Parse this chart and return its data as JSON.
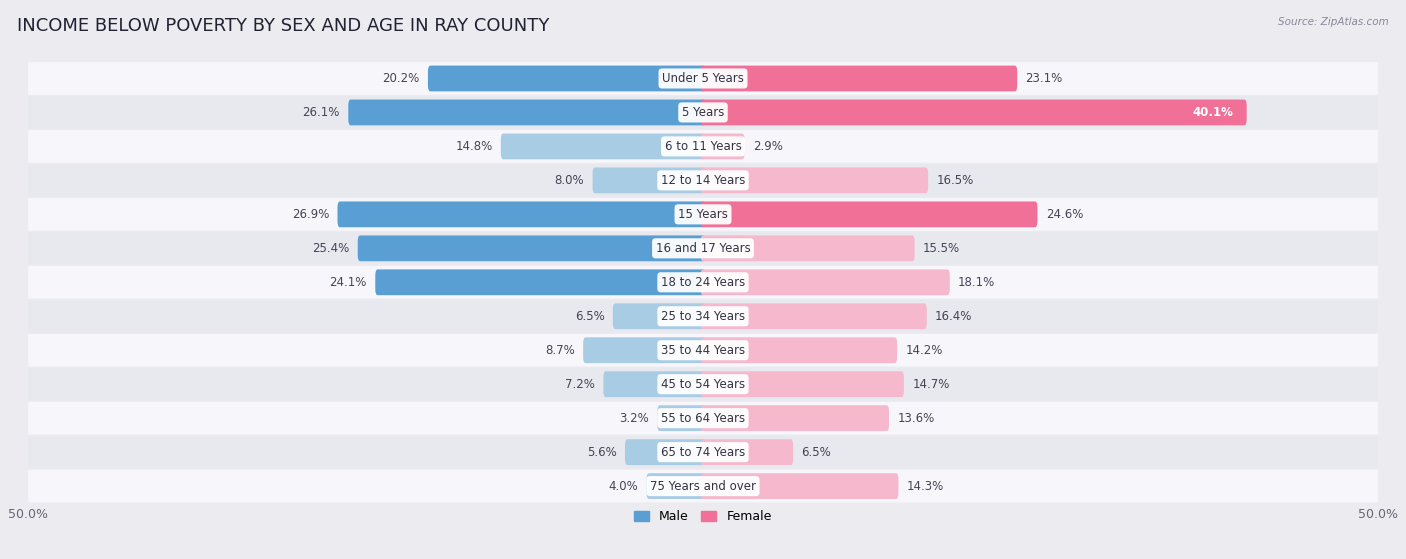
{
  "title": "INCOME BELOW POVERTY BY SEX AND AGE IN RAY COUNTY",
  "source": "Source: ZipAtlas.com",
  "categories": [
    "Under 5 Years",
    "5 Years",
    "6 to 11 Years",
    "12 to 14 Years",
    "15 Years",
    "16 and 17 Years",
    "18 to 24 Years",
    "25 to 34 Years",
    "35 to 44 Years",
    "45 to 54 Years",
    "55 to 64 Years",
    "65 to 74 Years",
    "75 Years and over"
  ],
  "male": [
    20.2,
    26.1,
    14.8,
    8.0,
    26.9,
    25.4,
    24.1,
    6.5,
    8.7,
    7.2,
    3.2,
    5.6,
    4.0
  ],
  "female": [
    23.1,
    40.1,
    2.9,
    16.5,
    24.6,
    15.5,
    18.1,
    16.4,
    14.2,
    14.7,
    13.6,
    6.5,
    14.3
  ],
  "male_color_dark": "#5a9fd4",
  "male_color_light": "#a8cce4",
  "female_color_dark": "#f07098",
  "female_color_light": "#f5b8cc",
  "male_label": "Male",
  "female_label": "Female",
  "axis_limit": 50.0,
  "bg_color": "#ebebf0",
  "row_bg_even": "#f7f7fb",
  "row_bg_odd": "#e8e8ef",
  "title_fontsize": 13,
  "label_fontsize": 8.5,
  "tick_fontsize": 9,
  "value_fontsize": 8.5
}
